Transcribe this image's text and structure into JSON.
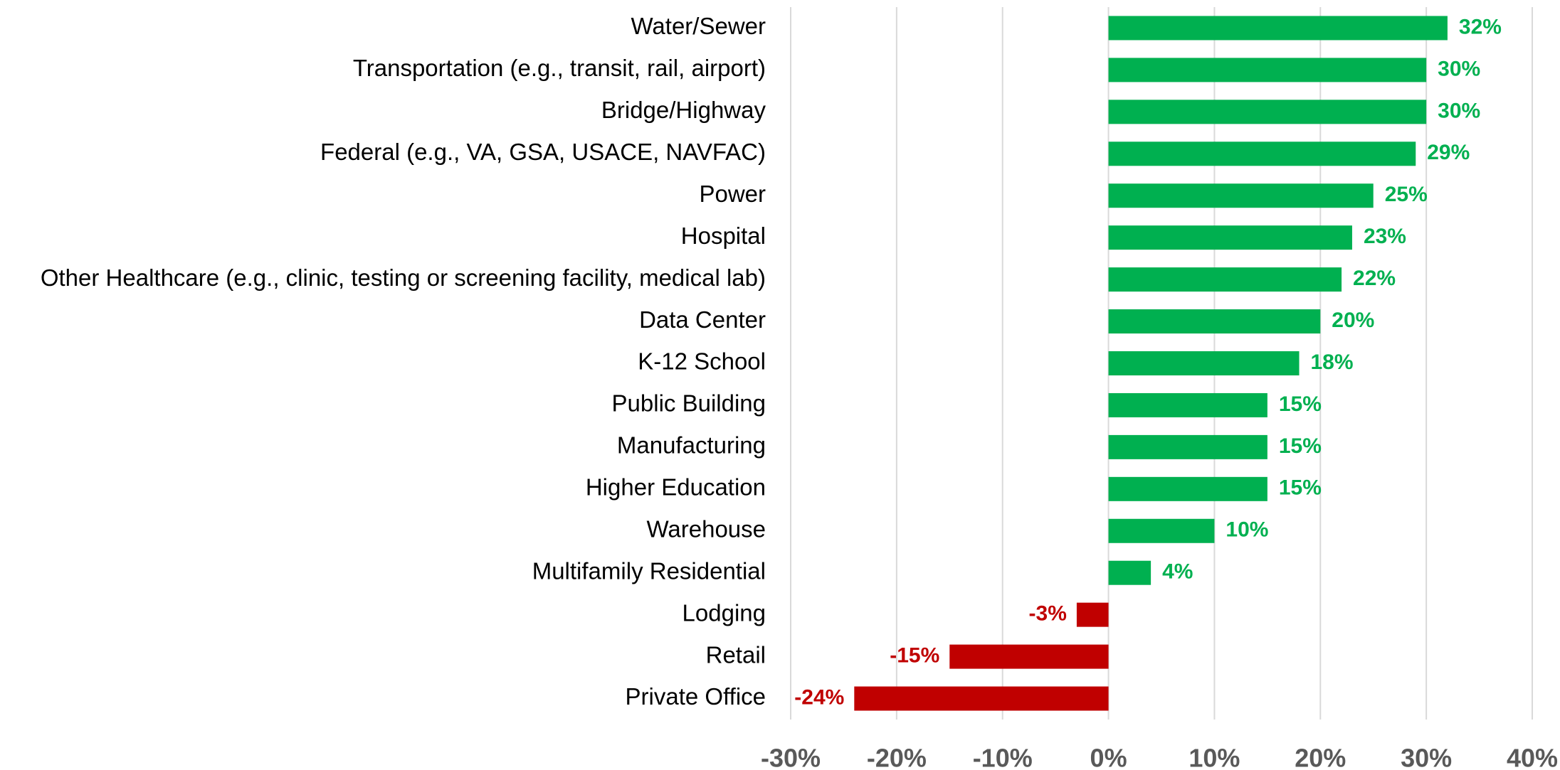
{
  "chart_data": {
    "type": "barh",
    "categories": [
      "Water/Sewer",
      "Transportation (e.g., transit, rail, airport)",
      "Bridge/Highway",
      "Federal (e.g., VA, GSA, USACE, NAVFAC)",
      "Power",
      "Hospital",
      "Other Healthcare (e.g., clinic, testing or screening facility, medical lab)",
      "Data Center",
      "K-12 School",
      "Public Building",
      "Manufacturing",
      "Higher Education",
      "Warehouse",
      "Multifamily Residential",
      "Lodging",
      "Retail",
      "Private Office"
    ],
    "values": [
      32,
      30,
      30,
      29,
      25,
      23,
      22,
      20,
      18,
      15,
      15,
      15,
      10,
      4,
      -3,
      -15,
      -24
    ],
    "value_labels": [
      "32%",
      "30%",
      "30%",
      "29%",
      "25%",
      "23%",
      "22%",
      "20%",
      "18%",
      "15%",
      "15%",
      "15%",
      "10%",
      "4%",
      "-3%",
      "-15%",
      "-24%"
    ],
    "color": "#00b050",
    "negative_color": "#c00000",
    "xlim": [
      -30,
      40
    ],
    "xticks": [
      {
        "value": -30,
        "label": "-30%"
      },
      {
        "value": -20,
        "label": "-20%"
      },
      {
        "value": -10,
        "label": "-10%"
      },
      {
        "value": 0,
        "label": "0%"
      },
      {
        "value": 10,
        "label": "10%"
      },
      {
        "value": 20,
        "label": "20%"
      },
      {
        "value": 30,
        "label": "30%"
      },
      {
        "value": 40,
        "label": "40%"
      }
    ],
    "grid": true
  }
}
